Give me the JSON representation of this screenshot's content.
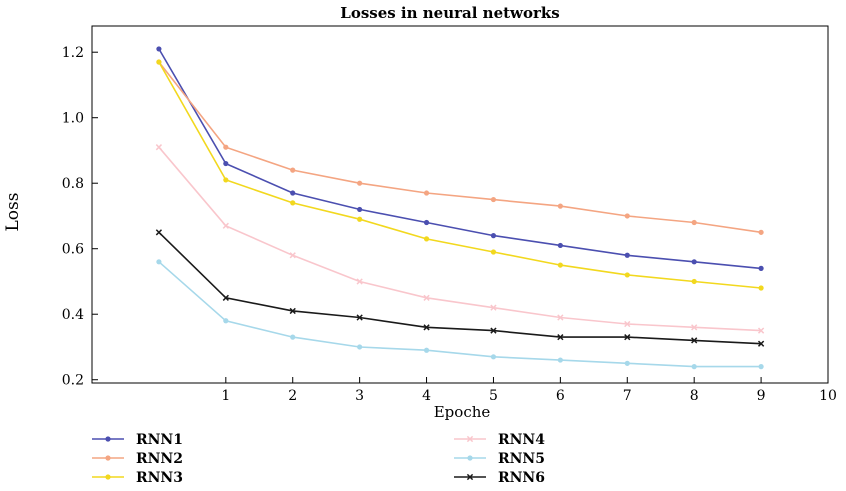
{
  "chart_data": {
    "type": "line",
    "title": "Losses in neural networks",
    "xlabel": "Epoche",
    "ylabel": "Loss",
    "xlim": [
      -1,
      10
    ],
    "ylim": [
      0.19,
      1.28
    ],
    "x_ticks": [
      1,
      2,
      3,
      4,
      5,
      6,
      7,
      8,
      9,
      10
    ],
    "x_tick_labels": [
      "1",
      "2",
      "3",
      "4",
      "5",
      "6",
      "7",
      "8",
      "9",
      "10"
    ],
    "y_ticks": [
      0.2,
      0.4,
      0.6,
      0.8,
      1.0,
      1.2
    ],
    "y_tick_labels": [
      "0.2",
      "0.4",
      "0.6",
      "0.8",
      "1.0",
      "1.2"
    ],
    "grid": false,
    "legend_position": "bottom",
    "x": [
      0,
      1,
      2,
      3,
      4,
      5,
      6,
      7,
      8,
      9
    ],
    "series": [
      {
        "name": "RNN1",
        "color": "#4b4fb0",
        "marker": "dot",
        "values": [
          1.21,
          0.86,
          0.77,
          0.72,
          0.68,
          0.64,
          0.61,
          0.58,
          0.56,
          0.54
        ]
      },
      {
        "name": "RNN2",
        "color": "#f4a582",
        "marker": "dot",
        "values": [
          1.17,
          0.91,
          0.84,
          0.8,
          0.77,
          0.75,
          0.73,
          0.7,
          0.68,
          0.65
        ]
      },
      {
        "name": "RNN3",
        "color": "#f2d81e",
        "marker": "dot",
        "values": [
          1.17,
          0.81,
          0.74,
          0.69,
          0.63,
          0.59,
          0.55,
          0.52,
          0.5,
          0.48
        ]
      },
      {
        "name": "RNN4",
        "color": "#f9c6cc",
        "marker": "cross",
        "values": [
          0.91,
          0.67,
          0.58,
          0.5,
          0.45,
          0.42,
          0.39,
          0.37,
          0.36,
          0.35
        ]
      },
      {
        "name": "RNN5",
        "color": "#a6d8ea",
        "marker": "dot",
        "values": [
          0.56,
          0.38,
          0.33,
          0.3,
          0.29,
          0.27,
          0.26,
          0.25,
          0.24,
          0.24
        ]
      },
      {
        "name": "RNN6",
        "color": "#1a1a1a",
        "marker": "cross",
        "values": [
          0.65,
          0.45,
          0.41,
          0.39,
          0.36,
          0.35,
          0.33,
          0.33,
          0.32,
          0.31
        ]
      }
    ]
  }
}
